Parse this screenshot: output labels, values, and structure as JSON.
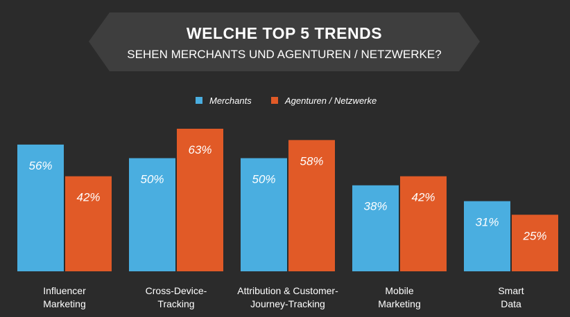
{
  "colors": {
    "background": "#2b2b2b",
    "banner": "#3e3e3e",
    "merchants": "#4aaee0",
    "agenturen": "#e15a27",
    "text": "#ffffff"
  },
  "chart_data": {
    "type": "bar",
    "title": "WELCHE TOP 5 TRENDS",
    "subtitle": "SEHEN MERCHANTS UND AGENTUREN / NETZWERKE?",
    "categories": [
      [
        "Influencer",
        "Marketing"
      ],
      [
        "Cross-Device-",
        "Tracking"
      ],
      [
        "Attribution & Customer-",
        "Journey-Tracking"
      ],
      [
        "Mobile",
        "Marketing"
      ],
      [
        "Smart",
        "Data"
      ]
    ],
    "series": [
      {
        "name": "Merchants",
        "values": [
          56,
          50,
          50,
          38,
          31
        ],
        "labels": [
          "56%",
          "50%",
          "50%",
          "38%",
          "31%"
        ]
      },
      {
        "name": "Agenturen / Netzwerke",
        "values": [
          42,
          63,
          58,
          42,
          25
        ],
        "labels": [
          "42%",
          "63%",
          "58%",
          "42%",
          "25%"
        ]
      }
    ],
    "ylim": [
      0,
      63
    ],
    "legend": "top-center",
    "grid": false
  }
}
